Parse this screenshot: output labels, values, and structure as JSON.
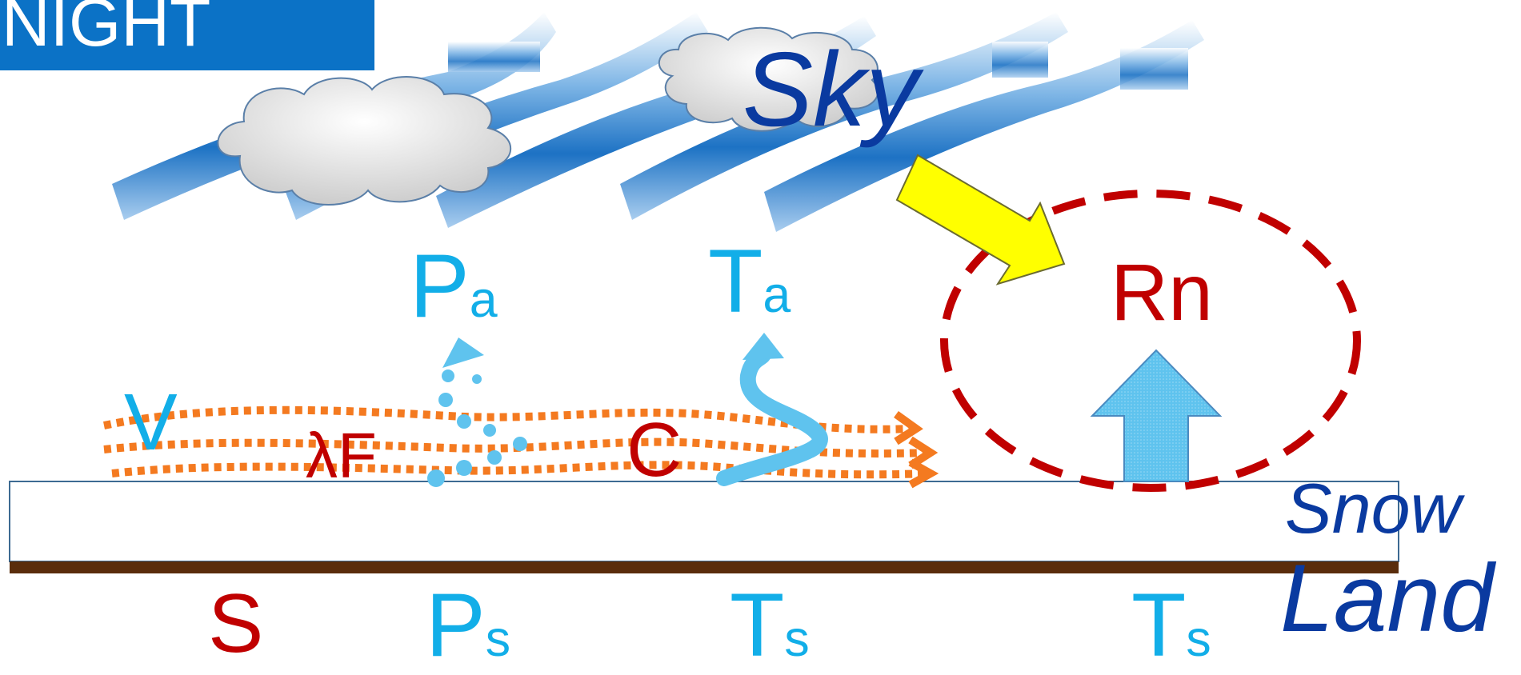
{
  "labels": {
    "night": "NIGHT",
    "sky": "Sky",
    "pa_main": "P",
    "pa_sub": "a",
    "ta_main": "T",
    "ta_sub": "a",
    "rn": "Rn",
    "v": "V",
    "lambda_f": "λF",
    "c": "C",
    "snow": "Snow",
    "land": "Land",
    "s": "S",
    "ps_main": "P",
    "ps_sub": "s",
    "ts1_main": "T",
    "ts1_sub": "s",
    "ts2_main": "T",
    "ts2_sub": "s"
  },
  "colors": {
    "night_bg": "#0b72c6",
    "sky_text": "#0a3aa0",
    "cyan": "#12aee8",
    "red": "#c00000",
    "orange": "#f47a20",
    "yellow": "#ffff00",
    "land_band": "#5a2d0c",
    "dashed_circle": "#c00000"
  }
}
